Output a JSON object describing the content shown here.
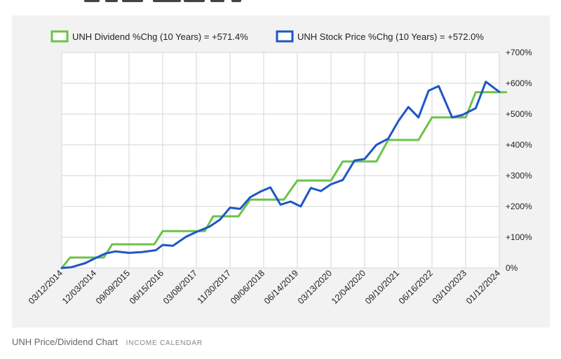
{
  "caption": {
    "title": "UNH Price/Dividend Chart",
    "source": "INCOME CALENDAR"
  },
  "chart_data": {
    "type": "line",
    "title": "",
    "xlabel": "",
    "ylabel": "",
    "ylim": [
      0,
      700
    ],
    "grid": true,
    "legend_position": "top",
    "y_tick_labels": [
      "0%",
      "+100%",
      "+200%",
      "+300%",
      "+400%",
      "+500%",
      "+600%",
      "+700%"
    ],
    "y_ticks": [
      0,
      100,
      200,
      300,
      400,
      500,
      600,
      700
    ],
    "x_tick_labels": [
      "03/12/2014",
      "12/03/2014",
      "09/09/2015",
      "06/15/2016",
      "03/08/2017",
      "11/30/2017",
      "09/06/2018",
      "06/14/2019",
      "03/13/2020",
      "12/04/2020",
      "09/10/2021",
      "06/16/2022",
      "03/10/2023",
      "01/12/2024"
    ],
    "series": [
      {
        "name": "UNH Dividend %Chg (10 Years) = +571.4%",
        "color": "#6cc24a",
        "points": [
          [
            0,
            0
          ],
          [
            0.25,
            34
          ],
          [
            0.75,
            34
          ],
          [
            1.0,
            34
          ],
          [
            1.25,
            34
          ],
          [
            1.5,
            77
          ],
          [
            2.0,
            77
          ],
          [
            2.5,
            77
          ],
          [
            2.75,
            77
          ],
          [
            3.0,
            120
          ],
          [
            3.5,
            120
          ],
          [
            4.0,
            120
          ],
          [
            4.25,
            120
          ],
          [
            4.5,
            168
          ],
          [
            5.0,
            168
          ],
          [
            5.25,
            168
          ],
          [
            5.6,
            222
          ],
          [
            6.0,
            222
          ],
          [
            6.3,
            222
          ],
          [
            6.6,
            222
          ],
          [
            7.0,
            284
          ],
          [
            7.5,
            284
          ],
          [
            8.0,
            284
          ],
          [
            8.35,
            346
          ],
          [
            9.0,
            346
          ],
          [
            9.35,
            346
          ],
          [
            9.7,
            416
          ],
          [
            10.0,
            416
          ],
          [
            10.3,
            416
          ],
          [
            10.6,
            416
          ],
          [
            11.0,
            489
          ],
          [
            11.5,
            489
          ],
          [
            12.0,
            489
          ],
          [
            12.3,
            571
          ],
          [
            12.6,
            571
          ],
          [
            13.0,
            571
          ],
          [
            13.2,
            571
          ]
        ]
      },
      {
        "name": "UNH Stock Price %Chg (10 Years) = +572.0%",
        "color": "#1f55c8",
        "points": [
          [
            0,
            0
          ],
          [
            0.3,
            3
          ],
          [
            0.7,
            16
          ],
          [
            1.0,
            32
          ],
          [
            1.3,
            47
          ],
          [
            1.6,
            54
          ],
          [
            2.0,
            49
          ],
          [
            2.4,
            52
          ],
          [
            2.8,
            58
          ],
          [
            3.0,
            75
          ],
          [
            3.3,
            72
          ],
          [
            3.7,
            102
          ],
          [
            4.0,
            117
          ],
          [
            4.4,
            135
          ],
          [
            4.7,
            157
          ],
          [
            5.0,
            196
          ],
          [
            5.3,
            192
          ],
          [
            5.6,
            230
          ],
          [
            5.9,
            248
          ],
          [
            6.2,
            262
          ],
          [
            6.5,
            206
          ],
          [
            6.8,
            216
          ],
          [
            7.1,
            200
          ],
          [
            7.4,
            260
          ],
          [
            7.7,
            250
          ],
          [
            8.0,
            272
          ],
          [
            8.35,
            286
          ],
          [
            8.7,
            349
          ],
          [
            9.0,
            354
          ],
          [
            9.35,
            400
          ],
          [
            9.7,
            420
          ],
          [
            10.0,
            477
          ],
          [
            10.3,
            523
          ],
          [
            10.6,
            489
          ],
          [
            10.9,
            576
          ],
          [
            11.2,
            591
          ],
          [
            11.6,
            489
          ],
          [
            11.9,
            497
          ],
          [
            12.3,
            519
          ],
          [
            12.6,
            605
          ],
          [
            13.0,
            572
          ]
        ]
      }
    ]
  }
}
